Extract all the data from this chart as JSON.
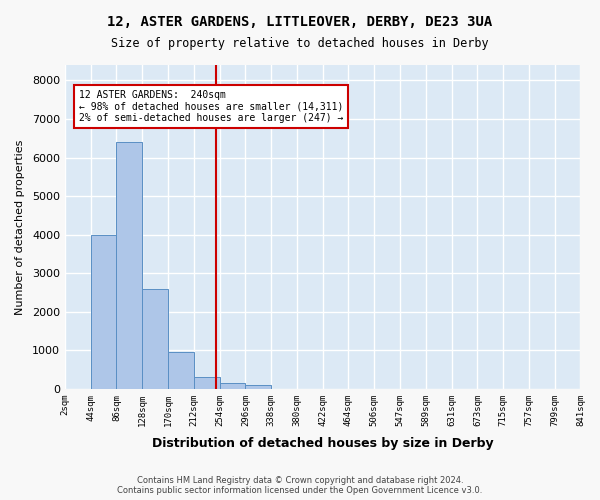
{
  "title": "12, ASTER GARDENS, LITTLEOVER, DERBY, DE23 3UA",
  "subtitle": "Size of property relative to detached houses in Derby",
  "xlabel": "Distribution of detached houses by size in Derby",
  "ylabel": "Number of detached properties",
  "footer_line1": "Contains HM Land Registry data © Crown copyright and database right 2024.",
  "footer_line2": "Contains public sector information licensed under the Open Government Licence v3.0.",
  "bin_labels": [
    "2sqm",
    "44sqm",
    "86sqm",
    "128sqm",
    "170sqm",
    "212sqm",
    "254sqm",
    "296sqm",
    "338sqm",
    "380sqm",
    "422sqm",
    "464sqm",
    "506sqm",
    "547sqm",
    "589sqm",
    "631sqm",
    "673sqm",
    "715sqm",
    "757sqm",
    "799sqm",
    "841sqm"
  ],
  "bar_values": [
    5,
    4000,
    6400,
    2600,
    950,
    300,
    150,
    100,
    0,
    0,
    0,
    0,
    0,
    0,
    0,
    0,
    0,
    0,
    0,
    0
  ],
  "bar_color": "#aec6e8",
  "bar_edgecolor": "#5a8fc4",
  "background_color": "#dce9f5",
  "grid_color": "#ffffff",
  "property_line_x": 5.85,
  "annotation_text": "12 ASTER GARDENS:  240sqm\n← 98% of detached houses are smaller (14,311)\n2% of semi-detached houses are larger (247) →",
  "annotation_box_color": "#ffffff",
  "annotation_box_edgecolor": "#cc0000",
  "vline_color": "#cc0000",
  "ylim": [
    0,
    8400
  ],
  "yticks": [
    0,
    1000,
    2000,
    3000,
    4000,
    5000,
    6000,
    7000,
    8000
  ]
}
